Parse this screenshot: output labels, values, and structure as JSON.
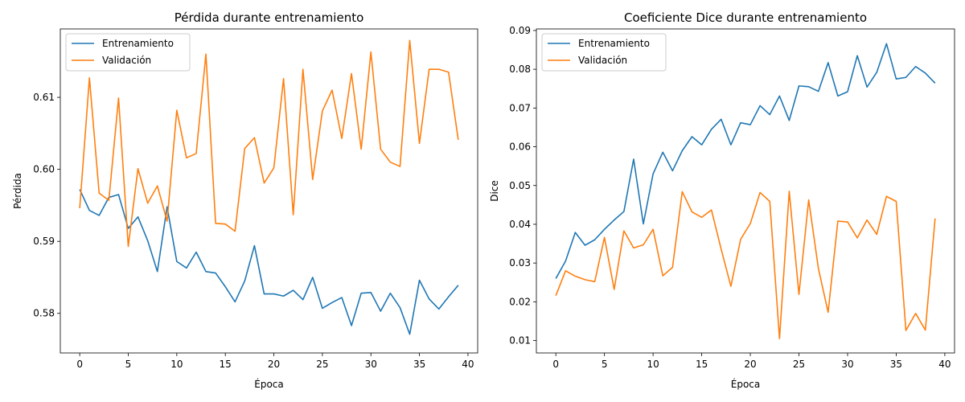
{
  "chart_data": [
    {
      "type": "line",
      "title": "Pérdida durante entrenamiento",
      "xlabel": "Época",
      "ylabel": "Pérdida",
      "xlim": [
        -2,
        41
      ],
      "ylim": [
        0.5745,
        0.6195
      ],
      "xticks": [
        0,
        5,
        10,
        15,
        20,
        25,
        30,
        35,
        40
      ],
      "yticks": [
        0.58,
        0.59,
        0.6,
        0.61
      ],
      "ytick_labels": [
        "0.58",
        "0.59",
        "0.60",
        "0.61"
      ],
      "legend_position": "upper-left",
      "grid": false,
      "x": [
        0,
        1,
        2,
        3,
        4,
        5,
        6,
        7,
        8,
        9,
        10,
        11,
        12,
        13,
        14,
        15,
        16,
        17,
        18,
        19,
        20,
        21,
        22,
        23,
        24,
        25,
        26,
        27,
        28,
        29,
        30,
        31,
        32,
        33,
        34,
        35,
        36,
        37,
        38,
        39
      ],
      "series": [
        {
          "name": "Entrenamiento",
          "color": "#1f77b4",
          "values": [
            0.5972,
            0.5943,
            0.5936,
            0.5961,
            0.5965,
            0.5918,
            0.5934,
            0.5901,
            0.5858,
            0.5948,
            0.5872,
            0.5863,
            0.5885,
            0.5858,
            0.5856,
            0.5837,
            0.5816,
            0.5845,
            0.5894,
            0.5827,
            0.5827,
            0.5824,
            0.5832,
            0.5819,
            0.585,
            0.5807,
            0.5815,
            0.5822,
            0.5783,
            0.5828,
            0.5829,
            0.5803,
            0.5828,
            0.5808,
            0.5771,
            0.5846,
            0.582,
            0.5806,
            0.5823,
            0.5839
          ]
        },
        {
          "name": "Validación",
          "color": "#ff7f0e",
          "values": [
            0.5946,
            0.6127,
            0.5967,
            0.5957,
            0.6099,
            0.5893,
            0.6001,
            0.5953,
            0.5977,
            0.5928,
            0.6082,
            0.6016,
            0.6022,
            0.616,
            0.5925,
            0.5924,
            0.5914,
            0.6029,
            0.6044,
            0.5981,
            0.6002,
            0.6126,
            0.5937,
            0.6139,
            0.5986,
            0.6081,
            0.611,
            0.6043,
            0.6133,
            0.6028,
            0.6163,
            0.6028,
            0.601,
            0.6004,
            0.6179,
            0.6036,
            0.6139,
            0.6139,
            0.6135,
            0.6041
          ]
        }
      ]
    },
    {
      "type": "line",
      "title": "Coeficiente Dice durante entrenamiento",
      "xlabel": "Época",
      "ylabel": "Dice",
      "xlim": [
        -2,
        41
      ],
      "ylim": [
        0.0068,
        0.0904
      ],
      "xticks": [
        0,
        5,
        10,
        15,
        20,
        25,
        30,
        35,
        40
      ],
      "yticks": [
        0.01,
        0.02,
        0.03,
        0.04,
        0.05,
        0.06,
        0.07,
        0.08,
        0.09
      ],
      "ytick_labels": [
        "0.01",
        "0.02",
        "0.03",
        "0.04",
        "0.05",
        "0.06",
        "0.07",
        "0.08",
        "0.09"
      ],
      "legend_position": "upper-left",
      "grid": false,
      "x": [
        0,
        1,
        2,
        3,
        4,
        5,
        6,
        7,
        8,
        9,
        10,
        11,
        12,
        13,
        14,
        15,
        16,
        17,
        18,
        19,
        20,
        21,
        22,
        23,
        24,
        25,
        26,
        27,
        28,
        29,
        30,
        31,
        32,
        33,
        34,
        35,
        36,
        37,
        38,
        39
      ],
      "series": [
        {
          "name": "Entrenamiento",
          "color": "#1f77b4",
          "values": [
            0.026,
            0.0305,
            0.0379,
            0.0346,
            0.036,
            0.0387,
            0.0411,
            0.0433,
            0.0568,
            0.0401,
            0.053,
            0.0586,
            0.0538,
            0.059,
            0.0626,
            0.0605,
            0.0645,
            0.0671,
            0.0605,
            0.0662,
            0.0657,
            0.0706,
            0.0683,
            0.0731,
            0.0668,
            0.0757,
            0.0755,
            0.0743,
            0.0817,
            0.0731,
            0.0742,
            0.0835,
            0.0754,
            0.0792,
            0.0866,
            0.0775,
            0.0779,
            0.0807,
            0.079,
            0.0764
          ]
        },
        {
          "name": "Validación",
          "color": "#ff7f0e",
          "values": [
            0.0216,
            0.028,
            0.0266,
            0.0257,
            0.0252,
            0.0366,
            0.0232,
            0.0383,
            0.0339,
            0.0347,
            0.0387,
            0.0267,
            0.0289,
            0.0484,
            0.0432,
            0.0418,
            0.0437,
            0.0336,
            0.024,
            0.0361,
            0.0402,
            0.0482,
            0.0459,
            0.0105,
            0.0485,
            0.0219,
            0.0463,
            0.0286,
            0.0173,
            0.0408,
            0.0406,
            0.0365,
            0.0411,
            0.0374,
            0.0472,
            0.0459,
            0.0126,
            0.017,
            0.0127,
            0.0415
          ]
        }
      ]
    }
  ]
}
